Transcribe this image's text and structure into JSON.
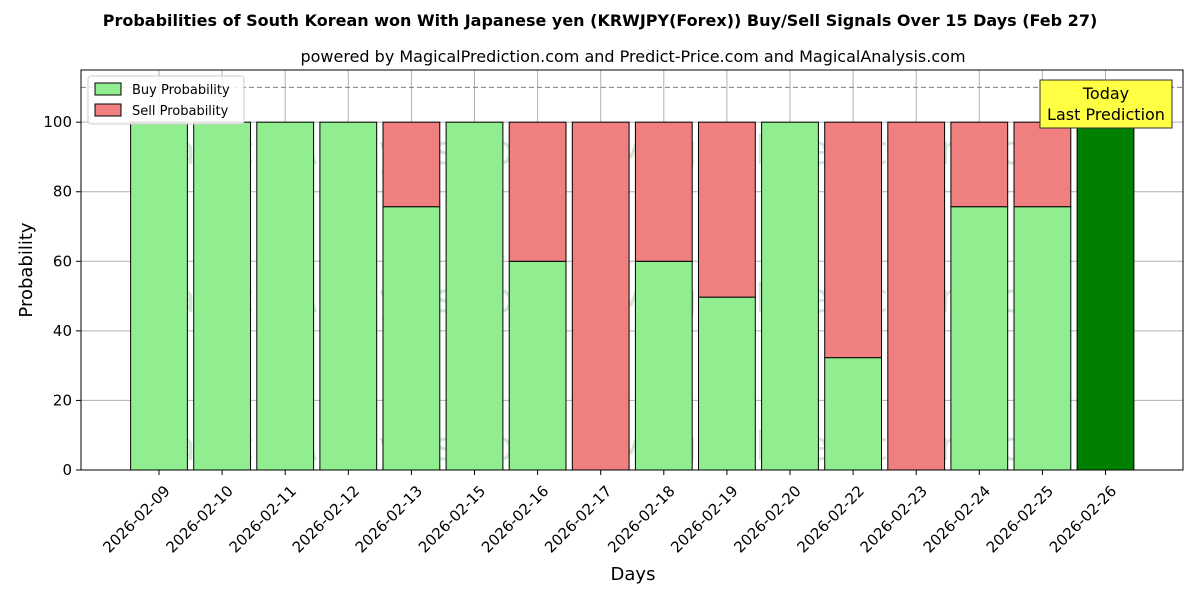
{
  "colors": {
    "buy": "#90ee90",
    "sell": "#f08080",
    "today": "#008000",
    "annotation_bg": "#ffff44",
    "grid": "#b0b0b0",
    "ref_line": "#808080"
  },
  "watermarks": [
    "MagicalAnalysis.com",
    "MagicalPrediction.com",
    "MagicalAnalysis.com",
    "MagicalPrediction.com",
    "MagicalAnalysis.com",
    "MagicalPrediction.com"
  ],
  "chart_data": {
    "type": "bar",
    "stacked": true,
    "title": "Probabilities of South Korean won With Japanese yen (KRWJPY(Forex)) Buy/Sell Signals Over 15 Days (Feb 27)",
    "subtitle": "powered by MagicalPrediction.com and Predict-Price.com and MagicalAnalysis.com",
    "xlabel": "Days",
    "ylabel": "Probability",
    "ylim": [
      0,
      115
    ],
    "yticks": [
      0,
      20,
      40,
      60,
      80,
      100
    ],
    "grid": true,
    "legend_position": "top-left",
    "reference_line": 110,
    "categories": [
      "2026-02-09",
      "2026-02-10",
      "2026-02-11",
      "2026-02-12",
      "2026-02-13",
      "2026-02-15",
      "2026-02-16",
      "2026-02-17",
      "2026-02-18",
      "2026-02-19",
      "2026-02-20",
      "2026-02-22",
      "2026-02-23",
      "2026-02-24",
      "2026-02-25",
      "2026-02-26"
    ],
    "series": [
      {
        "name": "Buy Probability",
        "values": [
          100,
          100,
          100,
          100,
          75.7,
          100,
          60,
          0,
          60,
          49.7,
          100,
          32.3,
          0,
          75.7,
          75.7,
          100
        ]
      },
      {
        "name": "Sell Probability",
        "values": [
          0,
          0,
          0,
          0,
          24.3,
          0,
          40,
          100,
          40,
          50.3,
          0,
          67.7,
          100,
          24.3,
          24.3,
          0
        ]
      }
    ],
    "highlight_index": 15,
    "annotation": {
      "line1": "Today",
      "line2": "Last Prediction"
    }
  }
}
